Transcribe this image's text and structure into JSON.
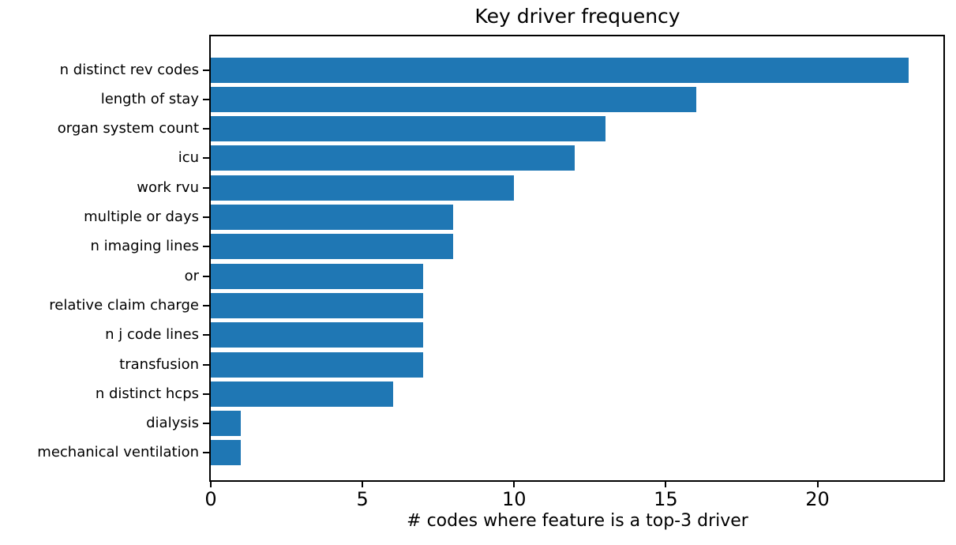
{
  "figure": {
    "background": "#ffffff"
  },
  "chart_data": {
    "type": "bar",
    "orientation": "horizontal",
    "title": "Key driver frequency",
    "xlabel": "# codes where feature is a top-3 driver",
    "ylabel": "",
    "categories": [
      "n distinct rev codes",
      "length of stay",
      "organ system count",
      "icu",
      "work rvu",
      "multiple or days",
      "n imaging lines",
      "or",
      "relative claim charge",
      "n j code lines",
      "transfusion",
      "n distinct hcps",
      "dialysis",
      "mechanical ventilation"
    ],
    "values": [
      23,
      16,
      13,
      12,
      10,
      8,
      8,
      7,
      7,
      7,
      7,
      6,
      1,
      1
    ],
    "xticks": [
      0,
      5,
      10,
      15,
      20
    ],
    "xlim": [
      0,
      24.15
    ],
    "grid": false,
    "legend": null,
    "bar_color": "#1f77b4",
    "axis_color": "#000000",
    "text_color": "#000000"
  }
}
